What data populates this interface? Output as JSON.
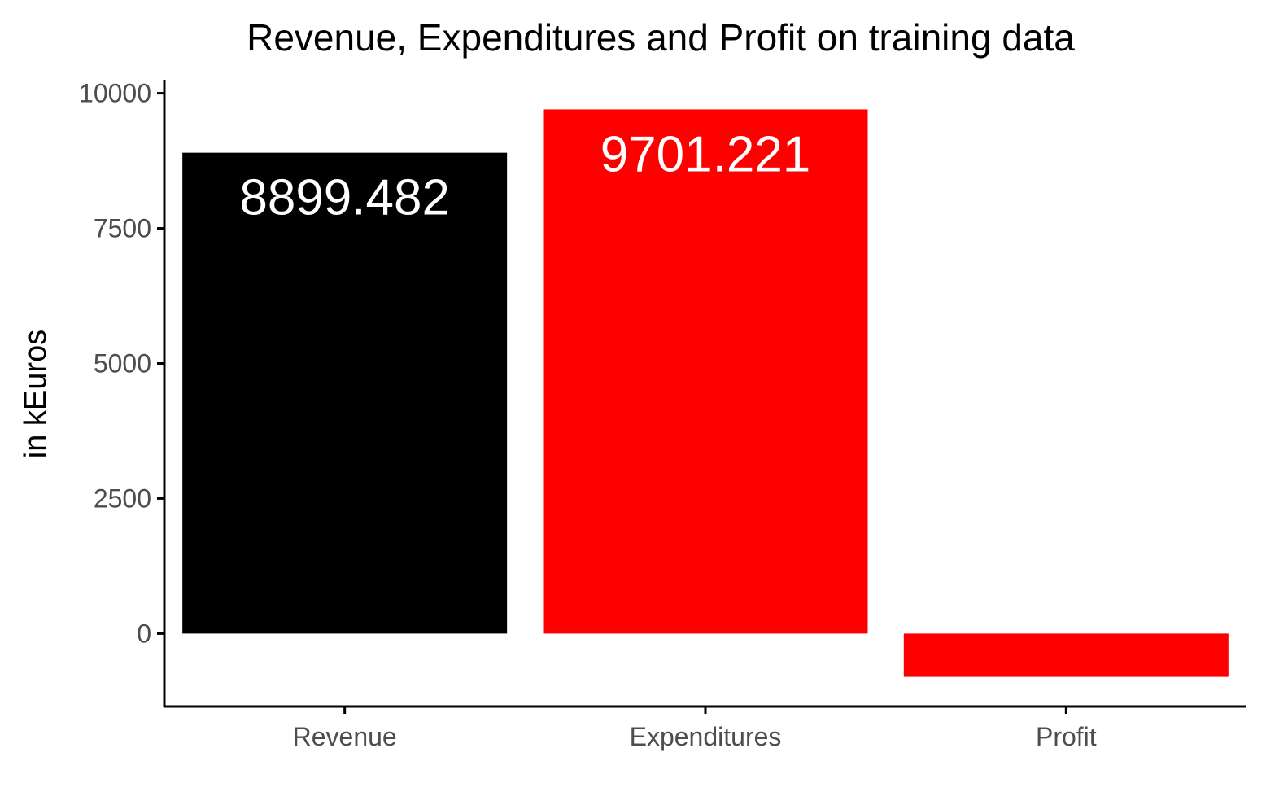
{
  "chart_data": {
    "type": "bar",
    "title": "Revenue, Expenditures and Profit on training data",
    "xlabel": "",
    "ylabel": "in kEuros",
    "categories": [
      "Revenue",
      "Expenditures",
      "Profit"
    ],
    "values": [
      8899.482,
      9701.221,
      -801.739
    ],
    "data_labels": [
      "8899.482",
      "9701.221",
      ""
    ],
    "bar_colors": [
      "#000000",
      "#ff0000",
      "#ff0000"
    ],
    "ylim": [
      -1350,
      10250
    ],
    "y_ticks": [
      0,
      2500,
      5000,
      7500,
      10000
    ],
    "y_tick_labels": [
      "0",
      "2500",
      "5000",
      "7500",
      "10000"
    ],
    "grid": false,
    "legend": "none"
  }
}
